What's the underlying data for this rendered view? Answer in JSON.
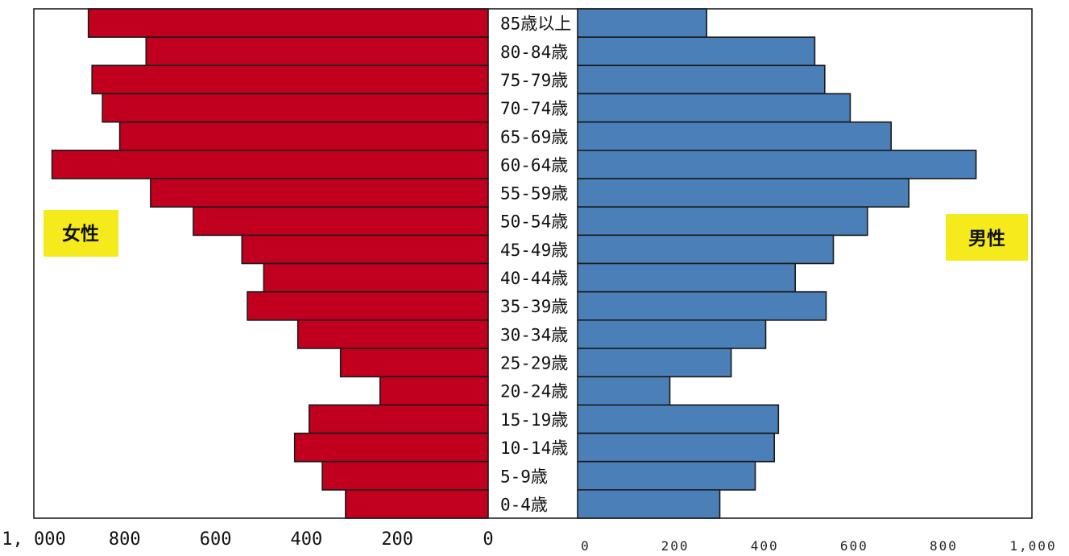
{
  "chart_data": {
    "type": "bar",
    "orientation": "horizontal",
    "layout": "population-pyramid",
    "categories": [
      "85歳以上",
      "80-84歳",
      "75-79歳",
      "70-74歳",
      "65-69歳",
      "60-64歳",
      "55-59歳",
      "50-54歳",
      "45-49歳",
      "40-44歳",
      "35-39歳",
      "30-34歳",
      "25-29歳",
      "20-24歳",
      "15-19歳",
      "10-14歳",
      "5-9歳",
      "0-4歳"
    ],
    "series": [
      {
        "name": "女性",
        "side": "left",
        "color": "#c0001e",
        "values": [
          880,
          753,
          872,
          849,
          811,
          960,
          743,
          649,
          542,
          494,
          530,
          419,
          325,
          238,
          394,
          426,
          365,
          314
        ]
      },
      {
        "name": "男性",
        "side": "right",
        "color": "#4a7fb8",
        "values": [
          284,
          522,
          544,
          600,
          690,
          877,
          729,
          638,
          563,
          479,
          547,
          414,
          338,
          203,
          442,
          433,
          391,
          313
        ]
      }
    ],
    "left_axis": {
      "range": [
        0,
        1000
      ],
      "ticks": [
        1000,
        800,
        600,
        400,
        200,
        0
      ],
      "tick_labels": [
        "1, 000",
        "800",
        "600",
        "400",
        "200",
        "0"
      ]
    },
    "right_axis": {
      "range": [
        0,
        1000
      ],
      "ticks": [
        0,
        200,
        400,
        600,
        800,
        1000
      ],
      "tick_labels": [
        "0",
        "200",
        "400",
        "600",
        "800",
        "1,000"
      ]
    },
    "grid": false,
    "label_box_color": "#f5ea1c"
  }
}
